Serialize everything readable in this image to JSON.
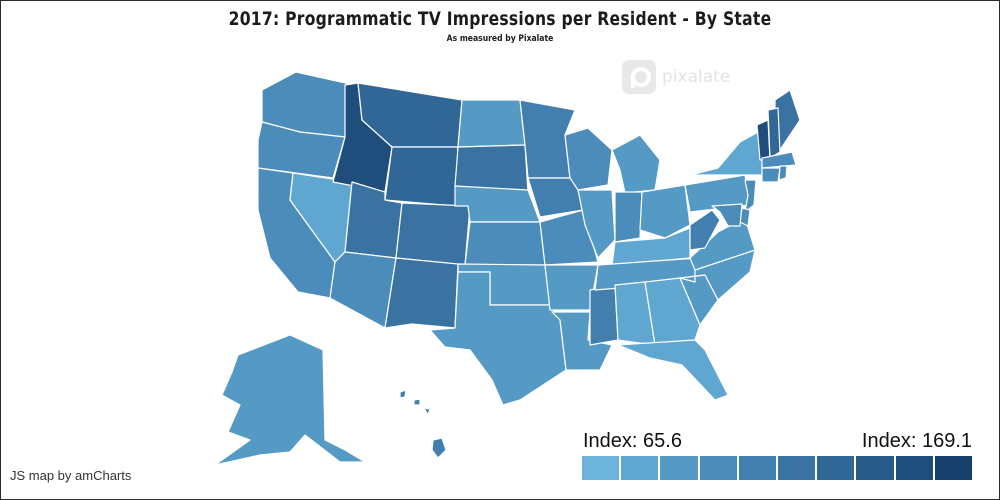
{
  "title": "2017: Programmatic TV Impressions per Resident - By State",
  "subtitle": "As measured by Pixalate",
  "watermark": {
    "text": "pixalate",
    "icon": "pixalate-logo-icon"
  },
  "credit": "JS map by amCharts",
  "legend": {
    "min_label": "Index: 65.6",
    "max_label": "Index: 169.1",
    "min": 65.6,
    "max": 169.1,
    "steps": [
      "#6cb4da",
      "#5fa6d0",
      "#5599c5",
      "#4c8cba",
      "#437fae",
      "#3a73a2",
      "#316796",
      "#285b8a",
      "#1f4e7d",
      "#173f6b"
    ]
  },
  "colors": {
    "stroke": "#ffffff",
    "background": "#ffffff"
  },
  "states": {
    "WA": 3,
    "OR": 3,
    "CA": 3,
    "NV": 1,
    "ID": 8,
    "MT": 6,
    "WY": 6,
    "UT": 5,
    "AZ": 3,
    "CO": 5,
    "NM": 5,
    "ND": 2,
    "SD": 5,
    "NE": 2,
    "KS": 3,
    "OK": 2,
    "TX": 2,
    "MN": 4,
    "IA": 4,
    "MO": 3,
    "AR": 2,
    "LA": 2,
    "WI": 3,
    "IL": 2,
    "MS": 4,
    "MI": 2,
    "IN": 3,
    "OH": 2,
    "KY": 1,
    "TN": 2,
    "AL": 1,
    "GA": 1,
    "FL": 1,
    "SC": 2,
    "NC": 2,
    "VA": 2,
    "WV": 4,
    "PA": 2,
    "NY": 1,
    "ME": 5,
    "VT": 8,
    "NH": 6,
    "MA": 3,
    "CT": 3,
    "RI": 3,
    "NJ": 3,
    "DE": 3,
    "MD": 3,
    "AK": 2,
    "HI": 4
  }
}
